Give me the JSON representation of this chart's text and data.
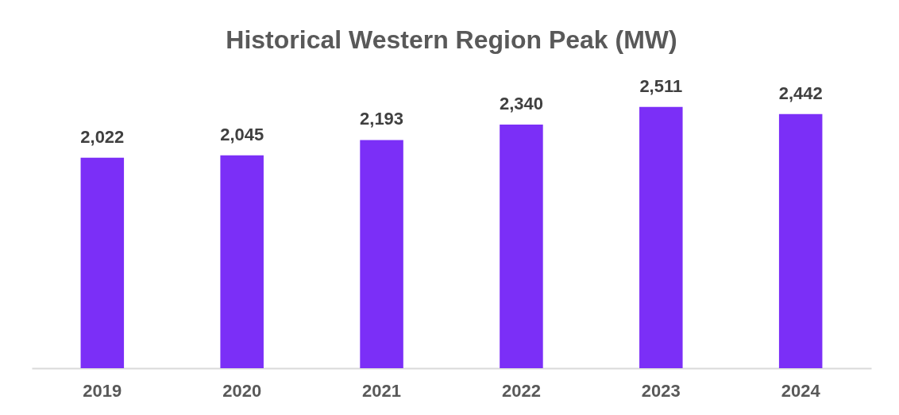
{
  "chart_data": {
    "type": "bar",
    "title": "Historical Western Region Peak (MW)",
    "categories": [
      "2019",
      "2020",
      "2021",
      "2022",
      "2023",
      "2024"
    ],
    "values": [
      2022,
      2045,
      2193,
      2340,
      2511,
      2442
    ],
    "value_labels": [
      "2,022",
      "2,045",
      "2,193",
      "2,340",
      "2,511",
      "2,442"
    ],
    "color": "#7b2ff7"
  }
}
